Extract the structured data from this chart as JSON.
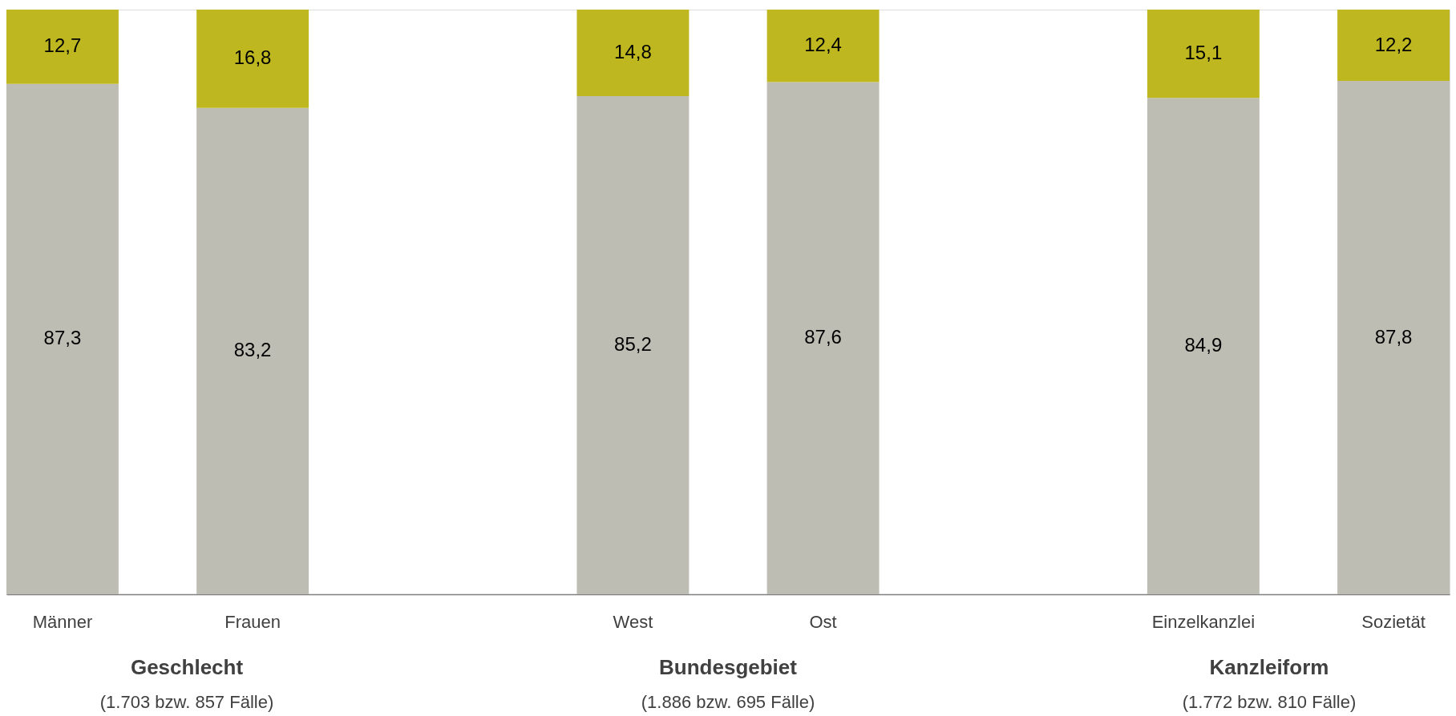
{
  "chart_data": {
    "type": "bar",
    "stacked": true,
    "categories": [
      "Männer",
      "Frauen",
      null,
      "West",
      "Ost",
      null,
      "Einzelkanzlei",
      "Sozietät"
    ],
    "series": [
      {
        "color": "#bdbdb3",
        "values": [
          87.3,
          83.2,
          null,
          85.2,
          87.6,
          null,
          84.9,
          87.8
        ],
        "value_labels": [
          "87,3",
          "83,2",
          null,
          "85,2",
          "87,6",
          null,
          "84,9",
          "87,8"
        ]
      },
      {
        "color": "#bfb720",
        "values": [
          12.7,
          16.8,
          null,
          14.8,
          12.4,
          null,
          15.1,
          12.2
        ],
        "value_labels": [
          "12,7",
          "16,8",
          null,
          "14,8",
          "12,4",
          null,
          "15,1",
          "12,2"
        ]
      }
    ],
    "annotations": [
      "Geschlecht",
      "(1.703 bzw. 857 Fälle)",
      "Bundesgebiet",
      "(1.886 bzw. 695 Fälle)",
      "Kanzleiform",
      "(1.772 bzw. 810 Fälle)"
    ]
  }
}
